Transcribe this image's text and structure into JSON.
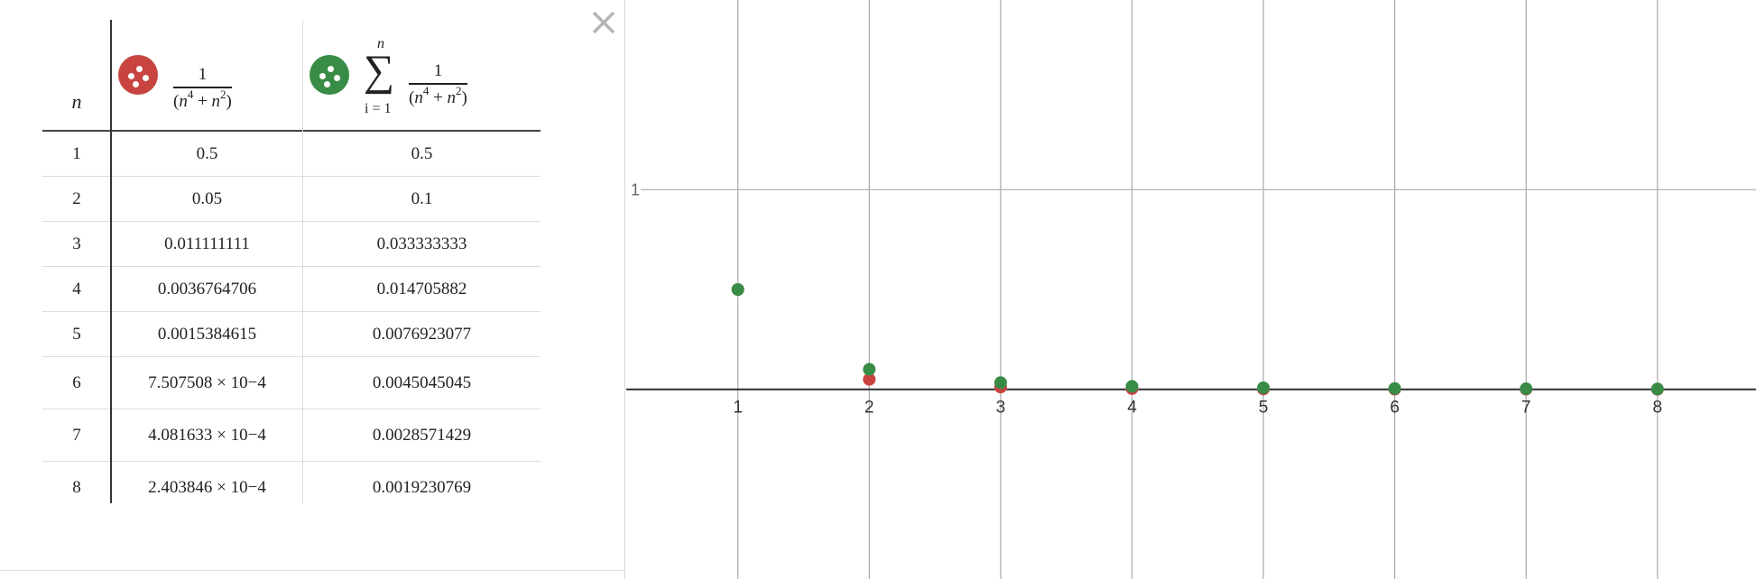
{
  "table": {
    "col_n": "n",
    "col1_expr": {
      "num": "1",
      "den": "(n4 + n2)"
    },
    "col2_expr": {
      "sum_top": "n",
      "sum_bottom": "i = 1",
      "sum_symbol": "∑",
      "num": "1",
      "den": "(n4 + n2)"
    },
    "rows": [
      {
        "n": "1",
        "a": "0.5",
        "s": "0.5"
      },
      {
        "n": "2",
        "a": "0.05",
        "s": "0.1"
      },
      {
        "n": "3",
        "a": "0.011111111",
        "s": "0.033333333"
      },
      {
        "n": "4",
        "a": "0.0036764706",
        "s": "0.014705882"
      },
      {
        "n": "5",
        "a": "0.0015384615",
        "s": "0.0076923077"
      },
      {
        "n": "6",
        "a": "7.507508 × 10",
        "a_exp": "−4",
        "s": "0.0045045045"
      },
      {
        "n": "7",
        "a": "4.081633 × 10",
        "a_exp": "−4",
        "s": "0.0028571429"
      },
      {
        "n": "8",
        "a": "2.403846 × 10",
        "a_exp": "−4",
        "s": "0.0019230769"
      }
    ]
  },
  "close_icon": "close-icon",
  "colors": {
    "red": "#c74440",
    "green": "#388c46",
    "axis": "#2e2e2e",
    "grid": "#aaaaaa"
  },
  "chart_data": {
    "type": "scatter",
    "xlim": [
      0.15,
      8.75
    ],
    "ylim": [
      -0.95,
      1.95
    ],
    "x_ticks": [
      1,
      2,
      3,
      4,
      5,
      6,
      7,
      8
    ],
    "y_ticks": [
      1
    ],
    "tick_labels": {
      "x": [
        "1",
        "2",
        "3",
        "4",
        "5",
        "6",
        "7",
        "8"
      ],
      "y": [
        "1"
      ]
    },
    "grid": true,
    "series": [
      {
        "color": "#c74440",
        "x": [
          1,
          2,
          3,
          4,
          5,
          6,
          7,
          8
        ],
        "y": [
          0.5,
          0.05,
          0.011111111,
          0.0036764706,
          0.0015384615,
          0.0007507508,
          0.0004081633,
          0.0002403846
        ]
      },
      {
        "color": "#388c46",
        "x": [
          1,
          2,
          3,
          4,
          5,
          6,
          7,
          8
        ],
        "y": [
          0.5,
          0.1,
          0.033333333,
          0.014705882,
          0.0076923077,
          0.0045045045,
          0.0028571429,
          0.0019230769
        ]
      }
    ]
  }
}
